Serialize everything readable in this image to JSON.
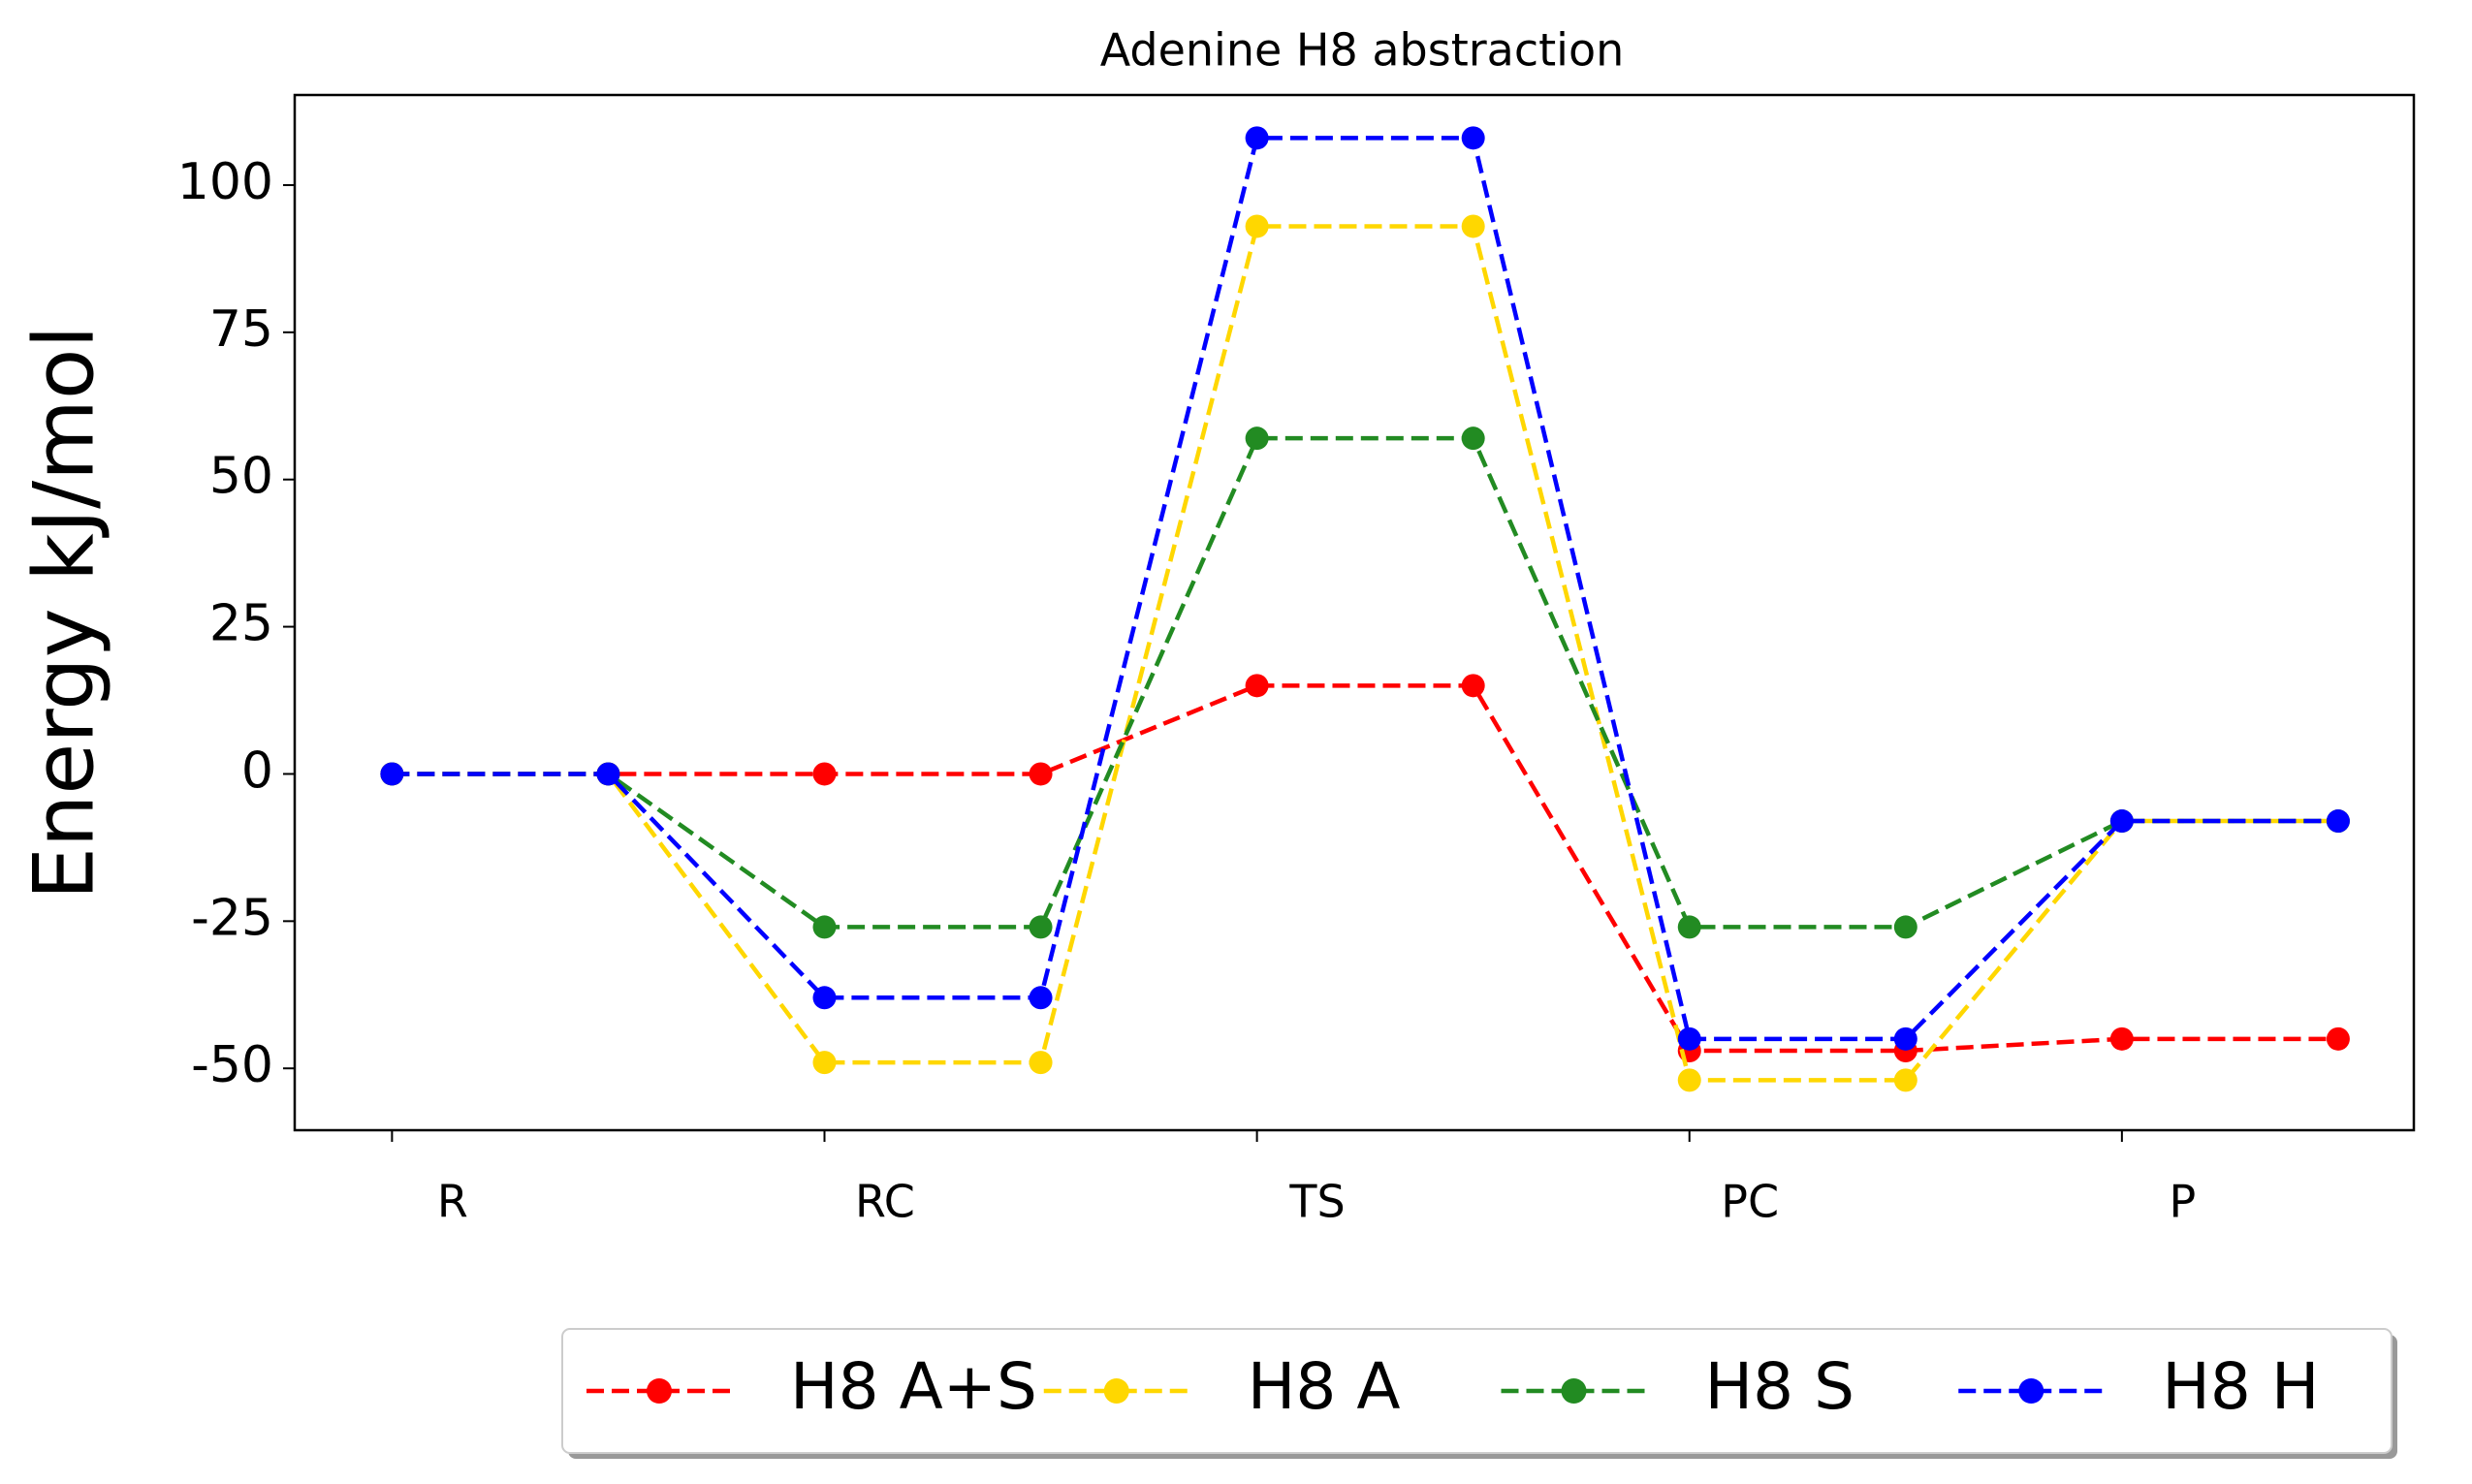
{
  "chart_data": {
    "type": "line",
    "title": "Adenine H8 abstraction",
    "ylabel": "Energy kJ/mol",
    "x": [
      0,
      1,
      2,
      3,
      4,
      5,
      6,
      7,
      8,
      9
    ],
    "xlim": [
      -0.45,
      9.35
    ],
    "xticks": [
      {
        "value": 0,
        "label": "R"
      },
      {
        "value": 2,
        "label": "RC"
      },
      {
        "value": 4,
        "label": "TS"
      },
      {
        "value": 6,
        "label": "PC"
      },
      {
        "value": 8,
        "label": "P"
      }
    ],
    "ylim": [
      -60.5,
      115.3
    ],
    "yticks": [
      -50,
      -25,
      0,
      25,
      50,
      75,
      100
    ],
    "legend": "lower center",
    "series": [
      {
        "name": "H8 A+S",
        "color": "#ff0000",
        "values": [
          0,
          0,
          0,
          0,
          15,
          15,
          -47,
          -47,
          -45,
          -45
        ]
      },
      {
        "name": "H8 A",
        "color": "#ffd700",
        "values": [
          0,
          0,
          -49,
          -49,
          93,
          93,
          -52,
          -52,
          -8,
          -8
        ]
      },
      {
        "name": "H8 S",
        "color": "#228b22",
        "values": [
          0,
          0,
          -26,
          -26,
          57,
          57,
          -26,
          -26,
          -8,
          -8
        ]
      },
      {
        "name": "H8 H",
        "color": "#0000ff",
        "values": [
          0,
          0,
          -38,
          -38,
          108,
          108,
          -45,
          -45,
          -8,
          -8
        ]
      }
    ]
  }
}
